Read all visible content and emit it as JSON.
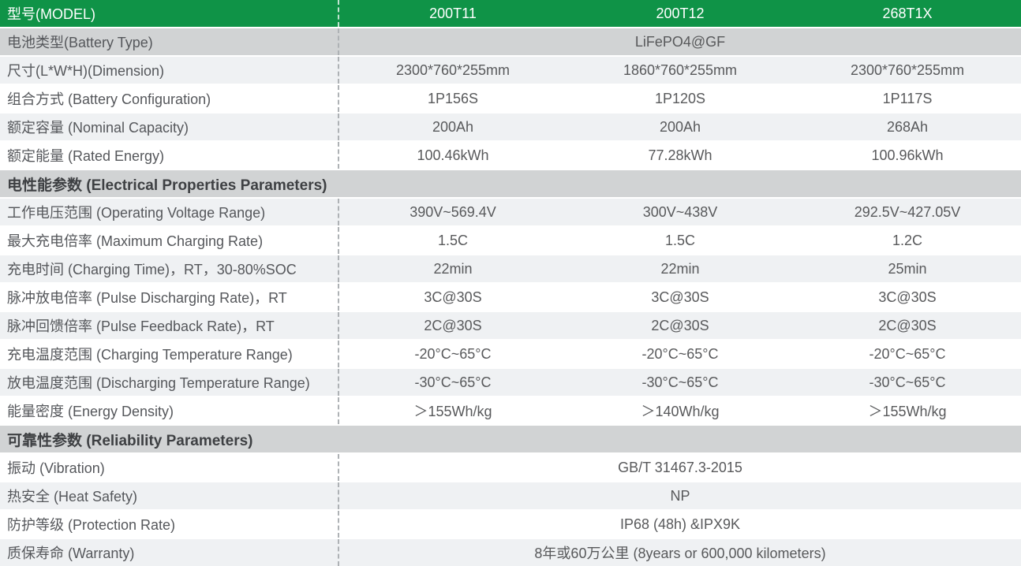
{
  "palette": {
    "header_green": "#0f9347",
    "section_gray": "#d1d3d4",
    "light_row": "#eff1f3",
    "white_row": "#ffffff",
    "label_text": "#55575b",
    "value_text": "#58595b",
    "section_text": "#3e4043",
    "header_text": "#ffffff",
    "dash_line": "#aeb2b5"
  },
  "table": {
    "header": {
      "label": "型号(MODEL)",
      "models": [
        "200T11",
        "200T12",
        "268T1X"
      ]
    },
    "rows": [
      {
        "type": "merged",
        "bg": "gray",
        "label": "电池类型(Battery Type)",
        "value": "LiFePO4@GF"
      },
      {
        "type": "data",
        "bg": "light",
        "label": "尺寸(L*W*H)(Dimension)",
        "values": [
          "2300*760*255mm",
          "1860*760*255mm",
          "2300*760*255mm"
        ]
      },
      {
        "type": "data",
        "bg": "white",
        "label": "组合方式 (Battery Configuration)",
        "values": [
          "1P156S",
          "1P120S",
          "1P117S"
        ]
      },
      {
        "type": "data",
        "bg": "light",
        "label": "额定容量 (Nominal Capacity)",
        "values": [
          "200Ah",
          "200Ah",
          "268Ah"
        ]
      },
      {
        "type": "data",
        "bg": "white",
        "label": "额定能量 (Rated Energy)",
        "values": [
          "100.46kWh",
          "77.28kWh",
          "100.96kWh"
        ]
      },
      {
        "type": "section",
        "bg": "gray",
        "label": "电性能参数 (Electrical Properties Parameters)"
      },
      {
        "type": "data",
        "bg": "light",
        "label": "工作电压范围 (Operating Voltage Range)",
        "values": [
          "390V~569.4V",
          "300V~438V",
          "292.5V~427.05V"
        ]
      },
      {
        "type": "data",
        "bg": "white",
        "label": "最大充电倍率 (Maximum Charging Rate)",
        "values": [
          "1.5C",
          "1.5C",
          "1.2C"
        ]
      },
      {
        "type": "data",
        "bg": "light",
        "label": "充电时间 (Charging Time)，RT，30-80%SOC",
        "values": [
          "22min",
          "22min",
          "25min"
        ]
      },
      {
        "type": "data",
        "bg": "white",
        "label": "脉冲放电倍率 (Pulse Discharging Rate)，RT",
        "values": [
          "3C@30S",
          "3C@30S",
          "3C@30S"
        ]
      },
      {
        "type": "data",
        "bg": "light",
        "label": "脉冲回馈倍率 (Pulse Feedback Rate)，RT",
        "values": [
          "2C@30S",
          "2C@30S",
          "2C@30S"
        ]
      },
      {
        "type": "data",
        "bg": "white",
        "label": "充电温度范围 (Charging Temperature Range)",
        "values": [
          "-20°C~65°C",
          "-20°C~65°C",
          "-20°C~65°C"
        ]
      },
      {
        "type": "data",
        "bg": "light",
        "label": "放电温度范围 (Discharging Temperature Range)",
        "values": [
          "-30°C~65°C",
          "-30°C~65°C",
          "-30°C~65°C"
        ]
      },
      {
        "type": "data",
        "bg": "white",
        "label": "能量密度 (Energy Density)",
        "values": [
          "＞155Wh/kg",
          "＞140Wh/kg",
          "＞155Wh/kg"
        ]
      },
      {
        "type": "section",
        "bg": "gray",
        "label": "可靠性参数 (Reliability Parameters)"
      },
      {
        "type": "merged",
        "bg": "white",
        "label": "振动 (Vibration)",
        "value": "GB/T 31467.3-2015"
      },
      {
        "type": "merged",
        "bg": "light",
        "label": "热安全 (Heat Safety)",
        "value": "NP"
      },
      {
        "type": "merged",
        "bg": "white",
        "label": "防护等级 (Protection Rate)",
        "value": "IP68 (48h) &IPX9K"
      },
      {
        "type": "merged",
        "bg": "light",
        "label": "质保寿命 (Warranty)",
        "value": "8年或60万公里 (8years or 600,000 kilometers)"
      }
    ]
  }
}
